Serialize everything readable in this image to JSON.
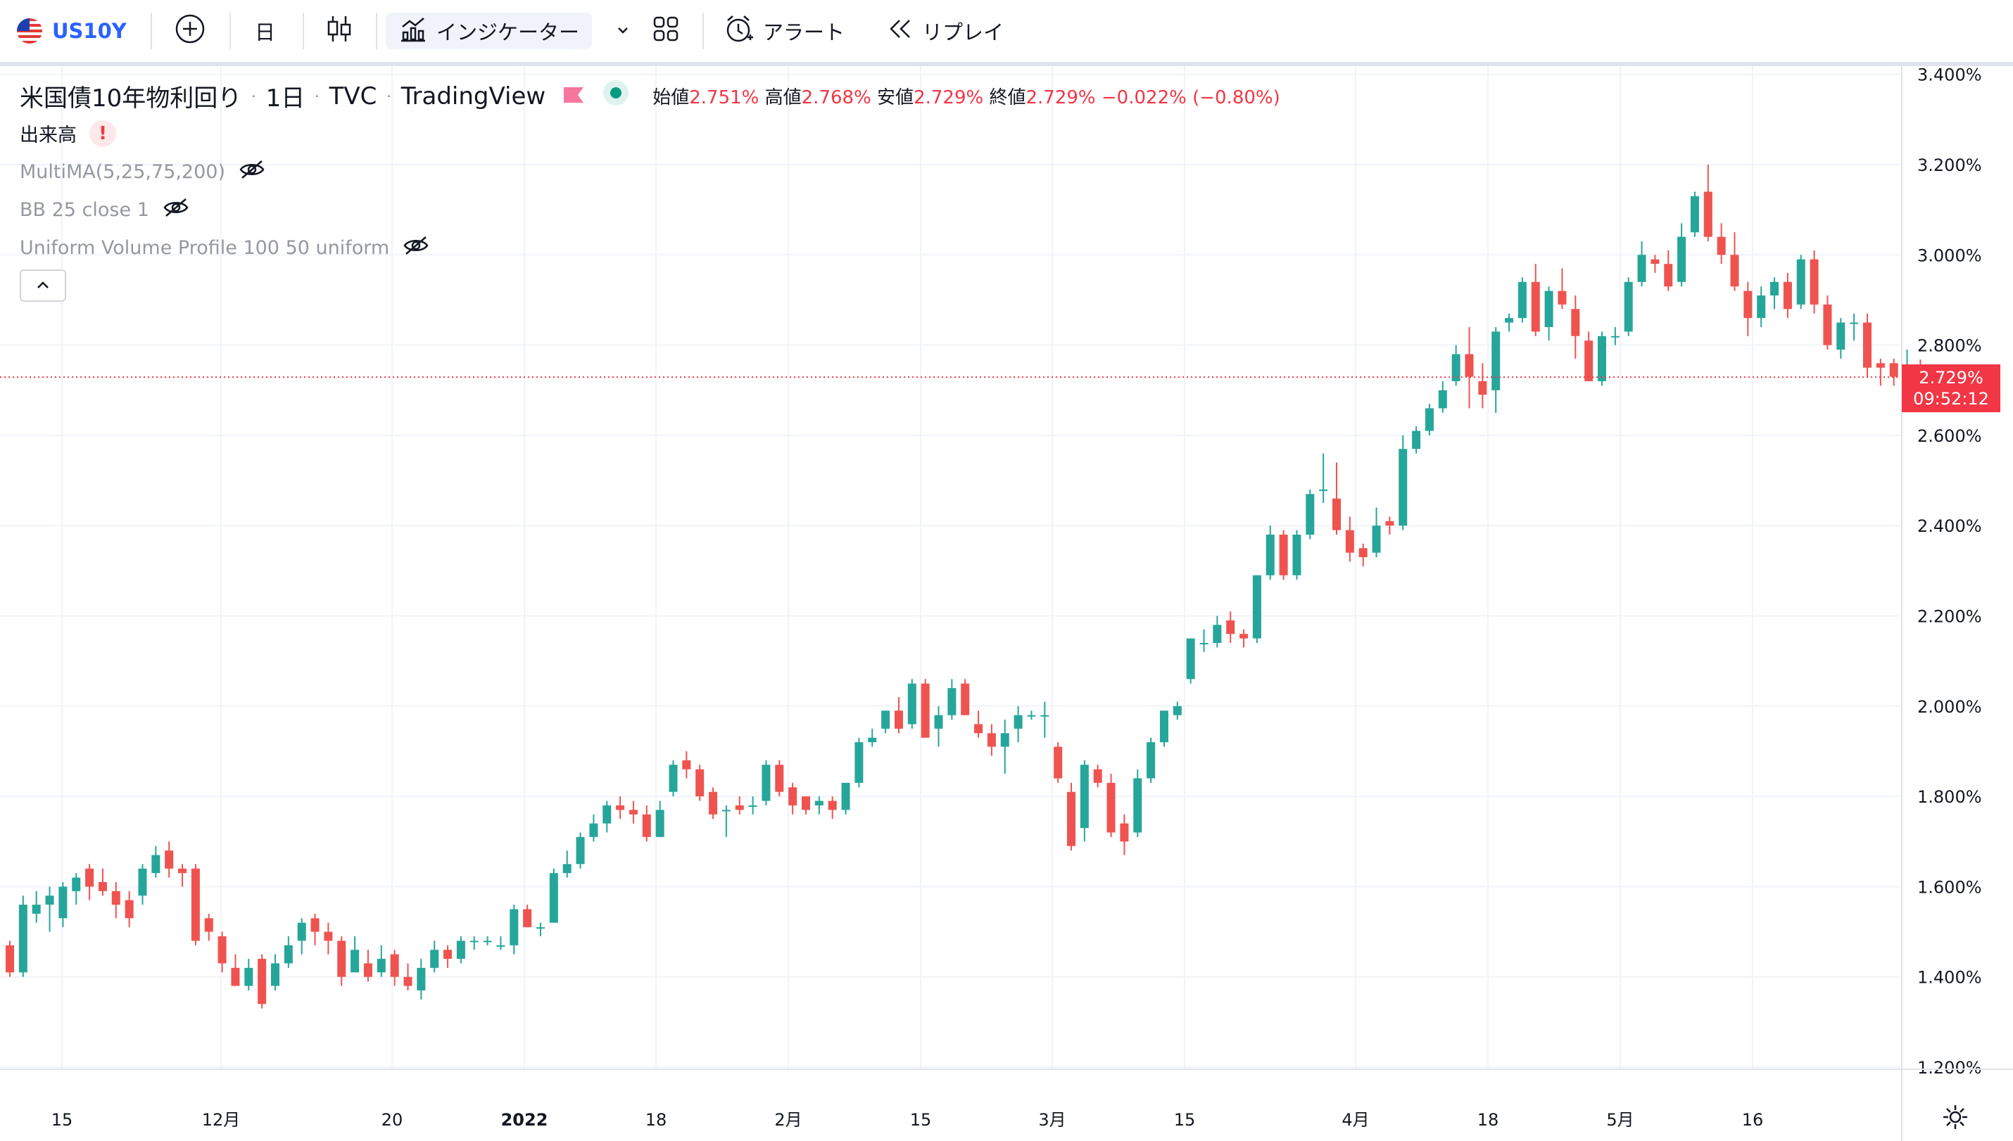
{
  "toolbar": {
    "symbol": "US10Y",
    "interval": "日",
    "indicators_label": "インジケーター",
    "alert_label": "アラート",
    "replay_label": "リプレイ"
  },
  "legend": {
    "title": "米国債10年物利回り",
    "interval": "1日",
    "exchange": "TVC",
    "source": "TradingView",
    "open_label": "始値",
    "open_value": "2.751%",
    "high_label": "高値",
    "high_value": "2.768%",
    "low_label": "安値",
    "low_value": "2.729%",
    "close_label": "終値",
    "close_value": "2.729%",
    "change": "−0.022% (−0.80%)",
    "volume_label": "出来高",
    "indicators": [
      "MultiMA(5,25,75,200)",
      "BB 25 close 1",
      "Uniform Volume Profile 100 50 uniform"
    ]
  },
  "price_tag": {
    "price": "2.729%",
    "countdown": "09:52:12"
  },
  "colors": {
    "up": "#26a69a",
    "down": "#ef5350",
    "accent": "#2962ff"
  },
  "chart_data": {
    "type": "candlestick",
    "title": "米国債10年物利回り",
    "ylim": [
      1.1,
      3.45
    ],
    "y_ticks": [
      "1.200%",
      "1.400%",
      "1.600%",
      "1.800%",
      "2.000%",
      "2.200%",
      "2.400%",
      "2.600%",
      "2.800%",
      "3.000%",
      "3.200%",
      "3.400%"
    ],
    "x_ticks": [
      "15",
      "12月",
      "20",
      "2022",
      "18",
      "2月",
      "15",
      "3月",
      "15",
      "4月",
      "18",
      "5月",
      "16"
    ],
    "last_price": 2.729,
    "candles": [
      [
        1.47,
        1.41,
        1.48,
        1.4
      ],
      [
        1.41,
        1.56,
        1.58,
        1.4
      ],
      [
        1.54,
        1.56,
        1.59,
        1.52
      ],
      [
        1.56,
        1.58,
        1.6,
        1.5
      ],
      [
        1.53,
        1.6,
        1.61,
        1.51
      ],
      [
        1.59,
        1.62,
        1.63,
        1.56
      ],
      [
        1.64,
        1.6,
        1.65,
        1.57
      ],
      [
        1.61,
        1.59,
        1.64,
        1.58
      ],
      [
        1.59,
        1.56,
        1.61,
        1.53
      ],
      [
        1.57,
        1.53,
        1.59,
        1.51
      ],
      [
        1.58,
        1.64,
        1.65,
        1.56
      ],
      [
        1.63,
        1.67,
        1.69,
        1.62
      ],
      [
        1.68,
        1.64,
        1.7,
        1.62
      ],
      [
        1.64,
        1.63,
        1.65,
        1.6
      ],
      [
        1.64,
        1.48,
        1.65,
        1.47
      ],
      [
        1.53,
        1.5,
        1.54,
        1.48
      ],
      [
        1.49,
        1.43,
        1.5,
        1.41
      ],
      [
        1.42,
        1.38,
        1.45,
        1.38
      ],
      [
        1.38,
        1.42,
        1.44,
        1.37
      ],
      [
        1.44,
        1.34,
        1.45,
        1.33
      ],
      [
        1.38,
        1.43,
        1.45,
        1.37
      ],
      [
        1.43,
        1.47,
        1.49,
        1.42
      ],
      [
        1.48,
        1.52,
        1.53,
        1.45
      ],
      [
        1.53,
        1.5,
        1.54,
        1.47
      ],
      [
        1.5,
        1.48,
        1.52,
        1.45
      ],
      [
        1.48,
        1.4,
        1.49,
        1.38
      ],
      [
        1.41,
        1.46,
        1.49,
        1.41
      ],
      [
        1.43,
        1.4,
        1.46,
        1.39
      ],
      [
        1.41,
        1.44,
        1.47,
        1.4
      ],
      [
        1.45,
        1.4,
        1.46,
        1.38
      ],
      [
        1.4,
        1.38,
        1.43,
        1.37
      ],
      [
        1.37,
        1.42,
        1.44,
        1.35
      ],
      [
        1.42,
        1.46,
        1.48,
        1.41
      ],
      [
        1.46,
        1.44,
        1.47,
        1.42
      ],
      [
        1.44,
        1.48,
        1.49,
        1.43
      ],
      [
        1.48,
        1.48,
        1.49,
        1.46
      ],
      [
        1.48,
        1.48,
        1.49,
        1.47
      ],
      [
        1.47,
        1.47,
        1.49,
        1.46
      ],
      [
        1.47,
        1.55,
        1.56,
        1.45
      ],
      [
        1.55,
        1.51,
        1.56,
        1.51
      ],
      [
        1.51,
        1.51,
        1.52,
        1.49
      ],
      [
        1.52,
        1.63,
        1.64,
        1.52
      ],
      [
        1.63,
        1.65,
        1.68,
        1.62
      ],
      [
        1.65,
        1.71,
        1.72,
        1.64
      ],
      [
        1.71,
        1.74,
        1.76,
        1.7
      ],
      [
        1.74,
        1.78,
        1.79,
        1.72
      ],
      [
        1.78,
        1.77,
        1.8,
        1.75
      ],
      [
        1.77,
        1.76,
        1.79,
        1.74
      ],
      [
        1.76,
        1.71,
        1.78,
        1.7
      ],
      [
        1.71,
        1.77,
        1.79,
        1.71
      ],
      [
        1.81,
        1.87,
        1.88,
        1.8
      ],
      [
        1.88,
        1.86,
        1.9,
        1.84
      ],
      [
        1.86,
        1.8,
        1.87,
        1.79
      ],
      [
        1.81,
        1.76,
        1.82,
        1.75
      ],
      [
        1.77,
        1.77,
        1.78,
        1.71
      ],
      [
        1.78,
        1.77,
        1.8,
        1.76
      ],
      [
        1.78,
        1.78,
        1.8,
        1.76
      ],
      [
        1.79,
        1.87,
        1.88,
        1.78
      ],
      [
        1.87,
        1.81,
        1.88,
        1.8
      ],
      [
        1.82,
        1.78,
        1.83,
        1.76
      ],
      [
        1.8,
        1.77,
        1.8,
        1.76
      ],
      [
        1.78,
        1.79,
        1.8,
        1.76
      ],
      [
        1.79,
        1.77,
        1.8,
        1.75
      ],
      [
        1.77,
        1.83,
        1.83,
        1.76
      ],
      [
        1.83,
        1.92,
        1.93,
        1.82
      ],
      [
        1.92,
        1.93,
        1.95,
        1.91
      ],
      [
        1.95,
        1.99,
        1.99,
        1.94
      ],
      [
        1.99,
        1.95,
        2.02,
        1.94
      ],
      [
        1.96,
        2.05,
        2.06,
        1.95
      ],
      [
        2.05,
        1.93,
        2.06,
        1.93
      ],
      [
        1.95,
        1.98,
        2.0,
        1.91
      ],
      [
        1.98,
        2.04,
        2.06,
        1.97
      ],
      [
        2.05,
        1.98,
        2.06,
        1.98
      ],
      [
        1.96,
        1.94,
        1.99,
        1.93
      ],
      [
        1.94,
        1.91,
        1.96,
        1.89
      ],
      [
        1.91,
        1.94,
        1.97,
        1.85
      ],
      [
        1.95,
        1.98,
        2.0,
        1.92
      ],
      [
        1.98,
        1.98,
        1.99,
        1.97
      ],
      [
        1.98,
        1.98,
        2.01,
        1.93
      ],
      [
        1.91,
        1.84,
        1.92,
        1.83
      ],
      [
        1.81,
        1.69,
        1.83,
        1.68
      ],
      [
        1.73,
        1.87,
        1.88,
        1.7
      ],
      [
        1.86,
        1.83,
        1.87,
        1.82
      ],
      [
        1.83,
        1.72,
        1.85,
        1.71
      ],
      [
        1.74,
        1.7,
        1.76,
        1.67
      ],
      [
        1.72,
        1.84,
        1.86,
        1.71
      ],
      [
        1.84,
        1.92,
        1.93,
        1.83
      ],
      [
        1.92,
        1.99,
        1.99,
        1.91
      ],
      [
        1.98,
        2.0,
        2.01,
        1.97
      ],
      [
        2.06,
        2.15,
        2.15,
        2.05
      ],
      [
        2.14,
        2.14,
        2.17,
        2.12
      ],
      [
        2.14,
        2.18,
        2.2,
        2.13
      ],
      [
        2.19,
        2.16,
        2.21,
        2.14
      ],
      [
        2.16,
        2.15,
        2.17,
        2.13
      ],
      [
        2.15,
        2.29,
        2.29,
        2.14
      ],
      [
        2.29,
        2.38,
        2.4,
        2.28
      ],
      [
        2.38,
        2.29,
        2.39,
        2.28
      ],
      [
        2.29,
        2.38,
        2.39,
        2.28
      ],
      [
        2.38,
        2.47,
        2.48,
        2.37
      ],
      [
        2.48,
        2.48,
        2.56,
        2.45
      ],
      [
        2.46,
        2.39,
        2.54,
        2.38
      ],
      [
        2.39,
        2.34,
        2.42,
        2.32
      ],
      [
        2.35,
        2.33,
        2.36,
        2.31
      ],
      [
        2.34,
        2.4,
        2.44,
        2.33
      ],
      [
        2.41,
        2.4,
        2.42,
        2.38
      ],
      [
        2.4,
        2.57,
        2.6,
        2.39
      ],
      [
        2.57,
        2.61,
        2.62,
        2.56
      ],
      [
        2.61,
        2.66,
        2.67,
        2.6
      ],
      [
        2.66,
        2.7,
        2.72,
        2.65
      ],
      [
        2.72,
        2.78,
        2.8,
        2.71
      ],
      [
        2.78,
        2.73,
        2.84,
        2.66
      ],
      [
        2.72,
        2.69,
        2.76,
        2.66
      ],
      [
        2.7,
        2.83,
        2.84,
        2.65
      ],
      [
        2.85,
        2.86,
        2.87,
        2.83
      ],
      [
        2.86,
        2.94,
        2.95,
        2.85
      ],
      [
        2.94,
        2.83,
        2.98,
        2.82
      ],
      [
        2.84,
        2.92,
        2.93,
        2.81
      ],
      [
        2.92,
        2.89,
        2.97,
        2.88
      ],
      [
        2.88,
        2.82,
        2.91,
        2.77
      ],
      [
        2.81,
        2.72,
        2.83,
        2.72
      ],
      [
        2.72,
        2.82,
        2.83,
        2.71
      ],
      [
        2.82,
        2.82,
        2.84,
        2.8
      ],
      [
        2.83,
        2.94,
        2.95,
        2.82
      ],
      [
        2.94,
        3.0,
        3.03,
        2.93
      ],
      [
        2.99,
        2.98,
        3.0,
        2.96
      ],
      [
        2.98,
        2.93,
        3.01,
        2.92
      ],
      [
        2.94,
        3.04,
        3.07,
        2.93
      ],
      [
        3.05,
        3.13,
        3.14,
        3.04
      ],
      [
        3.14,
        3.04,
        3.2,
        3.03
      ],
      [
        3.04,
        3.0,
        3.07,
        2.98
      ],
      [
        3.0,
        2.93,
        3.05,
        2.92
      ],
      [
        2.92,
        2.86,
        2.94,
        2.82
      ],
      [
        2.86,
        2.91,
        2.93,
        2.84
      ],
      [
        2.91,
        2.94,
        2.95,
        2.88
      ],
      [
        2.94,
        2.88,
        2.96,
        2.86
      ],
      [
        2.89,
        2.99,
        3.0,
        2.88
      ],
      [
        2.99,
        2.89,
        3.01,
        2.87
      ],
      [
        2.89,
        2.8,
        2.91,
        2.79
      ],
      [
        2.79,
        2.85,
        2.86,
        2.77
      ],
      [
        2.85,
        2.85,
        2.87,
        2.81
      ],
      [
        2.85,
        2.75,
        2.87,
        2.73
      ],
      [
        2.76,
        2.75,
        2.77,
        2.71
      ],
      [
        2.76,
        2.73,
        2.77,
        2.71
      ],
      [
        2.74,
        2.74,
        2.79,
        2.73
      ],
      [
        2.751,
        2.729,
        2.768,
        2.729
      ]
    ]
  }
}
